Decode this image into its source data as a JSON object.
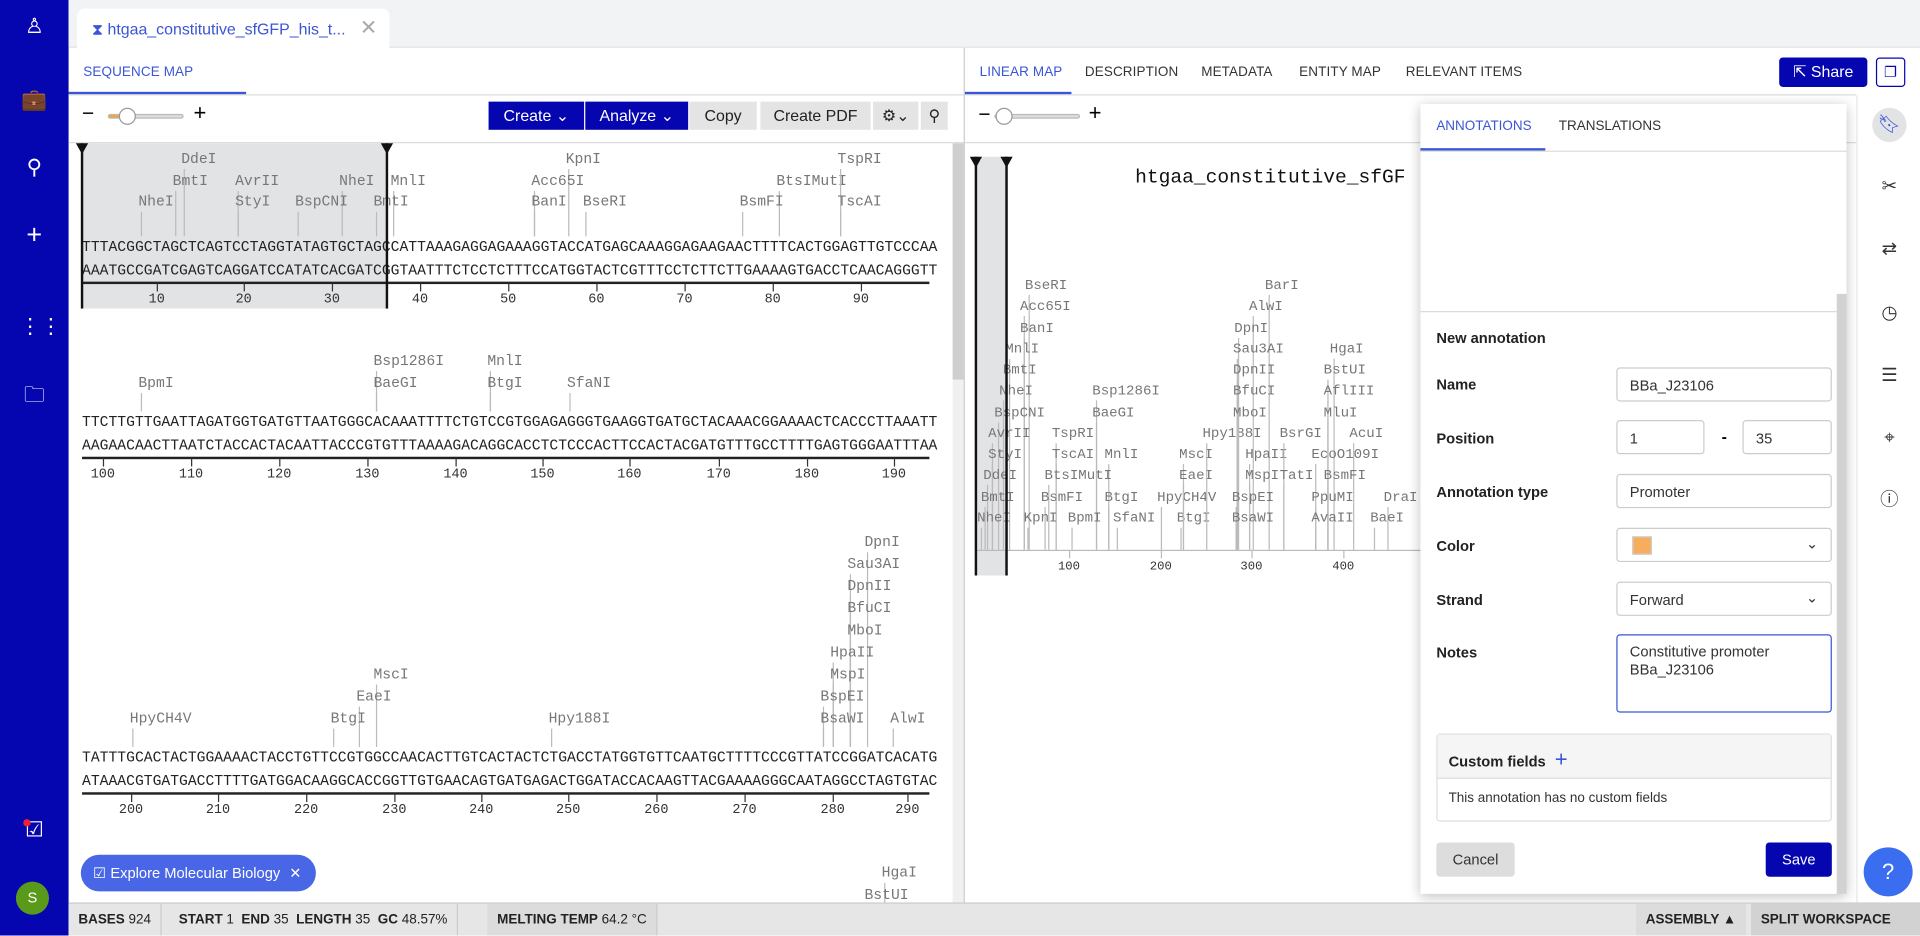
{
  "app": {
    "rail_icons": [
      "logo-icon",
      "briefcase-icon",
      "search-icon",
      "plus-icon",
      "apps-grid-icon",
      "folder-sync-icon",
      "tasks-icon"
    ],
    "avatar_initial": "S"
  },
  "doc_tab": {
    "title": "htgaa_constitutive_sfGFP_his_t...",
    "close": "✕"
  },
  "left_panel": {
    "tab": "SEQUENCE MAP",
    "toolbar": {
      "zoom_out": "−",
      "zoom_in": "+",
      "zoom_level": 0.2,
      "create": "Create",
      "analyze": "Analyze",
      "copy": "Copy",
      "create_pdf": "Create PDF"
    }
  },
  "sequence_map": {
    "rows": [
      {
        "top": "TTTACGGCTAGCTCAGTCCTAGGTATAGTGCTAGCCATTAAAGAGGAGAAAGGTACCATGAGCAAAGGAGAAGAACTTTTCACTGGAGTTGTCCCAA",
        "bottom": "AAATGCCGATCGAGTCAGGATCCATATCACGATCGGTAATTTCTCCTCTTTCCATGGTACTCGTTTCCTCTTCTTGAAAAGTGACCTCAACAGGGTT",
        "ticks": [
          "10",
          "20",
          "30",
          "40",
          "50",
          "60",
          "70",
          "80",
          "90"
        ],
        "enzymes": [
          "DdeI",
          "BmtI",
          "AvrII",
          "NheI",
          "MnlI",
          "KpnI",
          "Acc65I",
          "BtsIMutI",
          "TspRI",
          "NheI",
          "StyI",
          "BspCNI",
          "BmtI",
          "BanI",
          "BseRI",
          "BsmFI",
          "TscAI"
        ]
      },
      {
        "top": "TTCTTGTTGAATTAGATGGTGATGTTAATGGGCACAAATTTTCTGTCCGTGGAGAGGGTGAAGGTGATGCTACAAACGGAAAACTCACCCTTAAATT",
        "bottom": "AAGAACAACTTAATCTACCACTACAATTACCCGTGTTTAAAAGACAGGCACCTCTCCCACTTCCACTACGATGTTTGCCTTTTGAGTGGGAATTTAA",
        "ticks": [
          "100",
          "110",
          "120",
          "130",
          "140",
          "150",
          "160",
          "170",
          "180",
          "190"
        ],
        "enzymes": [
          "Bsp1286I",
          "MnlI",
          "BpmI",
          "BaeGI",
          "BtgI",
          "SfaNI"
        ]
      },
      {
        "top": "TATTTGCACTACTGGAAAACTACCTGTTCCGTGGCCAACACTTGTCACTACTCTGACCTATGGTGTTCAATGCTTTTCCCGTTATCCGGATCACATG",
        "bottom": "ATAAACGTGATGACCTTTTGATGGACAAGGCACCGGTTGTGAACAGTGATGAGACTGGATACCACAAGTTACGAAAAGGGCAATAGGCCTAGTGTAC",
        "ticks": [
          "200",
          "210",
          "220",
          "230",
          "240",
          "250",
          "260",
          "270",
          "280",
          "290"
        ],
        "enzymes": [
          "DpnI",
          "Sau3AI",
          "DpnII",
          "BfuCI",
          "MboI",
          "HpaII",
          "MspI",
          "MscI",
          "BspEI",
          "EaeI",
          "HpyCH4V",
          "BtgI",
          "Hpy188I",
          "BsaWI",
          "AlwI"
        ]
      },
      {
        "enzymes": [
          "HgaI",
          "BstUI"
        ]
      }
    ]
  },
  "explore_chip": {
    "label": "Explore Molecular Biology",
    "close": "✕"
  },
  "right_panel": {
    "tabs": [
      "LINEAR MAP",
      "DESCRIPTION",
      "METADATA",
      "ENTITY MAP",
      "RELEVANT ITEMS"
    ],
    "share": "Share",
    "linear_map": {
      "title": "htgaa_constitutive_sfGF",
      "ticks": [
        "100",
        "200",
        "300",
        "400"
      ],
      "enzymes": [
        "BseRI",
        "Acc65I",
        "BanI",
        "MnlI",
        "BmtI",
        "NheI",
        "BspCNI",
        "AvrII",
        "StyI",
        "DdeI",
        "BmtI",
        "NheI",
        "Bsp1286I",
        "BaeGI",
        "TspRI",
        "TscAI",
        "MnlI",
        "BtsIMutI",
        "BsmFI",
        "BtgI",
        "KpnI",
        "BpmI",
        "SfaNI",
        "HpyCH4V",
        "BtgI",
        "MscI",
        "EaeI",
        "Hpy188I",
        "BarI",
        "AlwI",
        "DpnI",
        "Sau3AI",
        "DpnII",
        "BfuCI",
        "MboI",
        "HpaII",
        "MspI",
        "BspEI",
        "BsaWI",
        "BsrGI",
        "HgaI",
        "BstUI",
        "AflIII",
        "MluI",
        "AcuI",
        "EcoO109I",
        "TatI",
        "BsmFI",
        "PpuMI",
        "AvaII",
        "DraI",
        "BaeI"
      ]
    }
  },
  "annotation_panel": {
    "tabs": [
      "ANNOTATIONS",
      "TRANSLATIONS"
    ],
    "heading": "New annotation",
    "name_label": "Name",
    "name_value": "BBa_J23106",
    "position_label": "Position",
    "start": "1",
    "dash": "-",
    "end": "35",
    "type_label": "Annotation type",
    "type_value": "Promoter",
    "color_label": "Color",
    "color_value": "#f6ad5e",
    "strand_label": "Strand",
    "strand_value": "Forward",
    "notes_label": "Notes",
    "notes_value": "Constitutive promoter\nBBa_J23106",
    "custom_fields_label": "Custom fields",
    "custom_fields_empty": "This annotation has no custom fields",
    "cancel": "Cancel",
    "save": "Save"
  },
  "right_rail": {
    "icons": [
      "bookmark-icon",
      "scissors-icon",
      "swap-arrows-icon",
      "history-clock-icon",
      "align-bars-icon",
      "crosshair-icon",
      "info-icon"
    ]
  },
  "help": "?",
  "status_bar": {
    "bases_label": "BASES",
    "bases": "924",
    "start_label": "START",
    "start": "1",
    "end_label": "END",
    "end": "35",
    "length_label": "LENGTH",
    "length": "35",
    "gc_label": "GC",
    "gc": "48.57%",
    "melting_label": "MELTING TEMP",
    "melting": "64.2 °C",
    "assembly": "ASSEMBLY ▲",
    "split": "SPLIT WORKSPACE"
  },
  "colors": {
    "brand": "#0606b0",
    "accent": "#3a55d6",
    "selection": "#e2e3e5"
  }
}
